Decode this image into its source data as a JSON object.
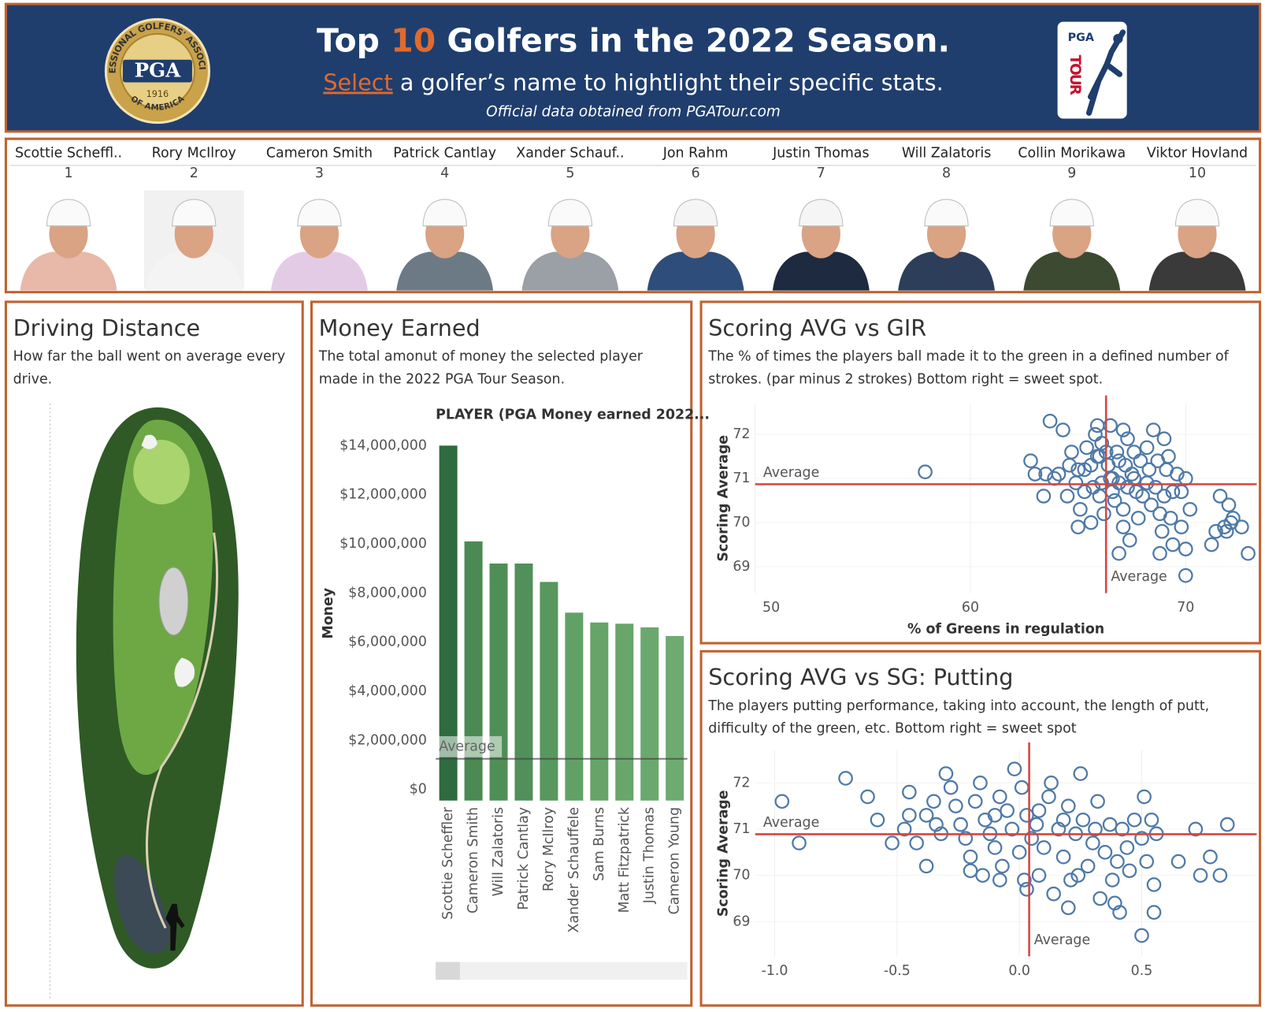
{
  "header": {
    "title": [
      "Top ",
      "10",
      " Golfers in the ",
      "2022",
      " Season."
    ],
    "subtitle": [
      "Select",
      " a golfer’s name to hightlight their specific stats."
    ],
    "source": "Official data obtained from PGATour.com",
    "pga_logo": {
      "name": "PGA",
      "year": "1916",
      "ring_top": "PROFESSIONAL GOLFERS' ASSOCIATION",
      "ring_bottom": "OF AMERICA"
    },
    "tour_logo": {
      "top": "PGA",
      "bottom": "TOUR"
    }
  },
  "golfers": [
    {
      "name": "Scottie Scheffl..",
      "rank": 1
    },
    {
      "name": "Rory McIlroy",
      "rank": 2
    },
    {
      "name": "Cameron Smith",
      "rank": 3
    },
    {
      "name": "Patrick Cantlay",
      "rank": 4
    },
    {
      "name": "Xander Schauf..",
      "rank": 5
    },
    {
      "name": "Jon Rahm",
      "rank": 6
    },
    {
      "name": "Justin Thomas",
      "rank": 7
    },
    {
      "name": "Will Zalatoris",
      "rank": 8
    },
    {
      "name": "Collin Morikawa",
      "rank": 9
    },
    {
      "name": "Viktor Hovland",
      "rank": 10
    }
  ],
  "driving": {
    "title": "Driving Distance",
    "description": "How far the ball went on average every drive."
  },
  "chart_data": [
    {
      "type": "bar",
      "title": "Money Earned",
      "description": "The total amonut of money the selected player made in the 2022 PGA Tour Season.",
      "header": "PLAYER (PGA Money earned 2022...",
      "y_label": "Money",
      "categories": [
        "Scottie Scheffler",
        "Cameron Smith",
        "Will Zalatoris",
        "Patrick Cantlay",
        "Rory McIlroy",
        "Xander Schauffele",
        "Sam Burns",
        "Matt Fitzpatrick",
        "Justin Thomas",
        "Cameron Young"
      ],
      "values": [
        14000000,
        10100000,
        9200000,
        9200000,
        8450000,
        7200000,
        6800000,
        6750000,
        6600000,
        6250000
      ],
      "colors": [
        "#2e6b3e",
        "#4b8a52",
        "#4f8f56",
        "#51905a",
        "#58975e",
        "#62a166",
        "#66a469",
        "#68a66b",
        "#6aa86d",
        "#6eab70"
      ],
      "ylim": [
        -450000,
        14400000
      ],
      "yticks": [
        {
          "value": 0,
          "label": "$0"
        },
        {
          "value": 2000000,
          "label": "$2,000,000"
        },
        {
          "value": 4000000,
          "label": "$4,000,000"
        },
        {
          "value": 6000000,
          "label": "$6,000,000"
        },
        {
          "value": 8000000,
          "label": "$8,000,000"
        },
        {
          "value": 10000000,
          "label": "$10,000,000"
        },
        {
          "value": 12000000,
          "label": "$12,000,000"
        },
        {
          "value": 14000000,
          "label": "$14,000,000"
        }
      ],
      "average": {
        "value": 1250000,
        "label": "Average"
      }
    },
    {
      "type": "scatter",
      "title": "Scoring AVG vs GIR",
      "description": "The % of times the players ball made it to the green in a defined number of strokes. (par minus 2 strokes) Bottom right =  sweet spot.",
      "x_label": "% of Greens in regulation",
      "y_label": "Scoring Average",
      "color": "#4e79a7",
      "grid": true,
      "xlim": [
        50,
        73.3
      ],
      "ylim": [
        68.4,
        72.7
      ],
      "xticks": [
        50,
        60,
        70
      ],
      "yticks": [
        69,
        70,
        71,
        72
      ],
      "average": {
        "x": 66.3,
        "y": 70.87,
        "label": "Average"
      },
      "x": [
        63.7,
        64.3,
        64.7,
        65.9,
        65.8,
        66.5,
        67.1,
        67.3,
        68.5,
        69.0,
        68.2,
        67.6,
        66.8,
        66.1,
        65.4,
        65.0,
        65.3,
        65.6,
        66.0,
        66.4,
        66.6,
        66.9,
        67.2,
        67.5,
        67.9,
        68.3,
        68.7,
        69.1,
        69.6,
        70.0,
        69.8,
        69.4,
        69.0,
        68.6,
        68.2,
        67.7,
        67.3,
        66.9,
        66.5,
        66.1,
        65.7,
        65.3,
        64.9,
        64.5,
        64.1,
        63.9,
        63.5,
        63.0,
        62.8,
        65.1,
        65.6,
        66.2,
        66.7,
        67.1,
        67.8,
        68.4,
        68.8,
        69.3,
        69.8,
        70.2,
        67.4,
        68.9,
        69.4,
        67.1,
        65.0,
        66.9,
        68.8,
        70.0,
        71.6,
        72.0,
        72.2,
        71.8,
        71.4,
        72.6,
        72.1,
        71.2,
        71.9,
        72.9,
        70.0,
        65.9,
        66.3,
        63.4,
        66.6,
        67.6,
        68.0,
        69.2,
        66.0,
        64.6,
        57.9
      ],
      "y": [
        72.3,
        72.1,
        71.6,
        72.2,
        72.0,
        72.2,
        72.1,
        71.9,
        72.1,
        71.9,
        71.7,
        71.6,
        71.6,
        71.8,
        71.7,
        71.2,
        71.2,
        71.3,
        71.5,
        71.3,
        71.0,
        71.4,
        71.3,
        71.1,
        71.4,
        71.2,
        71.4,
        71.2,
        71.1,
        71.0,
        70.7,
        70.7,
        70.6,
        70.8,
        70.9,
        70.7,
        70.8,
        70.9,
        71.0,
        70.9,
        70.8,
        70.7,
        70.9,
        70.6,
        71.1,
        71.0,
        71.1,
        71.1,
        71.4,
        70.3,
        70.0,
        70.2,
        70.5,
        70.3,
        70.1,
        70.4,
        70.2,
        70.1,
        69.9,
        70.3,
        69.6,
        69.8,
        69.5,
        69.9,
        69.9,
        69.3,
        69.3,
        69.4,
        70.6,
        70.4,
        70.1,
        69.9,
        69.8,
        69.9,
        70.0,
        69.5,
        69.8,
        69.3,
        68.8,
        71.5,
        71.6,
        70.6,
        70.7,
        71.0,
        70.6,
        71.5,
        70.6,
        71.3,
        71.15
      ]
    },
    {
      "type": "scatter",
      "title": "Scoring AVG vs SG: Putting",
      "description": "The players putting performance, taking into account, the length of putt, difficulty of the green, etc. Bottom right = sweet spot",
      "y_label": "Scoring Average",
      "color": "#4e79a7",
      "grid": true,
      "xlim": [
        -1.08,
        0.97
      ],
      "ylim": [
        68.25,
        72.7
      ],
      "xticks": [
        {
          "value": -1,
          "label": "-1.0"
        },
        -0.5,
        {
          "value": 0,
          "label": "0.0"
        },
        0.5
      ],
      "yticks": [
        69,
        70,
        71,
        72
      ],
      "average": {
        "x": 0.04,
        "y": 70.89,
        "label": "Average"
      },
      "x": [
        -0.97,
        -0.9,
        -0.71,
        -0.62,
        -0.58,
        -0.52,
        -0.47,
        -0.45,
        -0.45,
        -0.42,
        -0.38,
        -0.35,
        -0.34,
        -0.32,
        -0.3,
        -0.28,
        -0.26,
        -0.24,
        -0.22,
        -0.2,
        -0.18,
        -0.16,
        -0.14,
        -0.12,
        -0.1,
        -0.08,
        -0.07,
        -0.05,
        -0.03,
        -0.02,
        0.0,
        0.01,
        0.02,
        0.03,
        0.05,
        0.07,
        0.08,
        0.1,
        0.12,
        0.13,
        0.14,
        0.16,
        0.18,
        0.2,
        0.21,
        0.23,
        0.25,
        0.26,
        0.28,
        0.3,
        0.32,
        0.33,
        0.35,
        0.37,
        0.38,
        0.4,
        0.42,
        0.44,
        0.47,
        0.5,
        0.51,
        0.52,
        0.54,
        0.56,
        0.65,
        0.72,
        0.74,
        0.78,
        0.82,
        0.85,
        0.5,
        0.41,
        0.55,
        0.55,
        0.39,
        0.2,
        -0.15,
        -0.08,
        0.03,
        -0.2,
        -0.38,
        0.31,
        0.24,
        -0.1,
        0.08,
        0.45,
        0.18
      ],
      "y": [
        71.6,
        70.7,
        72.1,
        71.7,
        71.2,
        70.7,
        71.0,
        71.3,
        71.8,
        70.7,
        71.3,
        71.6,
        71.1,
        70.9,
        72.2,
        71.9,
        71.5,
        71.1,
        70.8,
        70.4,
        71.6,
        72.0,
        71.2,
        70.9,
        70.6,
        71.7,
        70.2,
        71.4,
        71.0,
        72.3,
        70.5,
        71.9,
        69.9,
        71.3,
        70.8,
        71.1,
        70.0,
        70.6,
        71.7,
        72.0,
        69.6,
        71.0,
        70.4,
        71.5,
        69.9,
        70.9,
        72.2,
        71.2,
        70.2,
        70.7,
        71.6,
        69.5,
        70.5,
        71.1,
        69.9,
        70.3,
        71.0,
        70.6,
        71.2,
        70.8,
        71.7,
        70.3,
        71.2,
        70.9,
        70.3,
        71.0,
        70.0,
        70.4,
        70.0,
        71.1,
        68.7,
        69.2,
        69.8,
        69.2,
        69.4,
        69.3,
        70.0,
        69.9,
        69.7,
        70.1,
        70.2,
        71.0,
        70.0,
        71.3,
        71.4,
        70.1,
        71.2
      ]
    }
  ]
}
